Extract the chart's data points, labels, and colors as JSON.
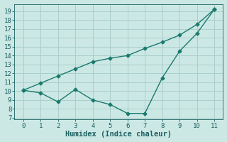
{
  "line1_x": [
    0,
    1,
    2,
    3,
    4,
    5,
    6,
    7,
    8,
    9,
    10,
    11
  ],
  "line1_y": [
    10.1,
    10.9,
    11.7,
    12.5,
    13.3,
    13.7,
    14.0,
    14.8,
    15.5,
    16.3,
    17.5,
    19.2
  ],
  "line2_x": [
    0,
    1,
    2,
    3,
    4,
    5,
    6,
    7,
    8,
    9,
    10,
    11
  ],
  "line2_y": [
    10.1,
    9.8,
    8.8,
    10.2,
    9.0,
    8.5,
    7.5,
    7.5,
    11.5,
    14.5,
    16.5,
    19.2
  ],
  "line_color": "#1a7a6e",
  "bg_color": "#cce8e4",
  "grid_color": "#aacfcb",
  "xlabel": "Humidex (Indice chaleur)",
  "xlim": [
    -0.5,
    11.5
  ],
  "ylim": [
    6.8,
    19.8
  ],
  "yticks": [
    7,
    8,
    9,
    10,
    11,
    12,
    13,
    14,
    15,
    16,
    17,
    18,
    19
  ],
  "xticks": [
    0,
    1,
    2,
    3,
    4,
    5,
    6,
    7,
    8,
    9,
    10,
    11
  ],
  "marker": "D",
  "markersize": 2.5,
  "linewidth": 1.0,
  "font_color": "#1a6060",
  "xlabel_fontsize": 7.5,
  "tick_fontsize": 6.5
}
